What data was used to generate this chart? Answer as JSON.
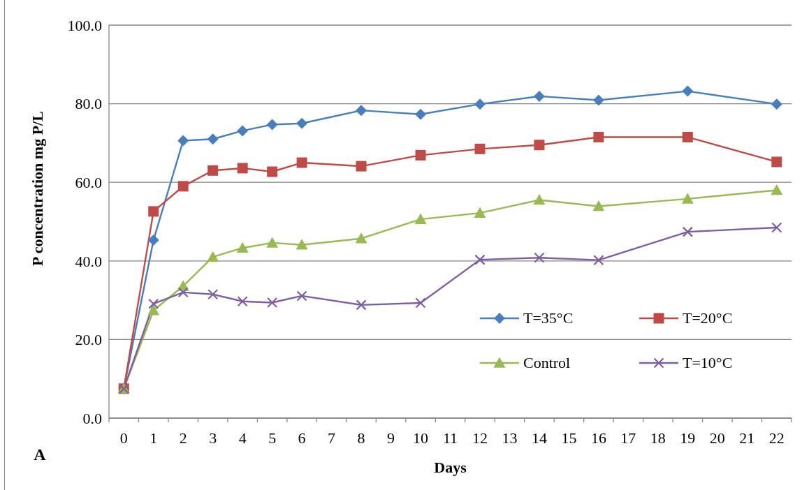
{
  "chart_data": {
    "type": "line",
    "xlabel": "Days",
    "ylabel": "P concentration mg P/L",
    "annotations": [
      "A"
    ],
    "x": [
      0,
      1,
      2,
      3,
      4,
      5,
      6,
      8,
      10,
      12,
      14,
      16,
      19,
      22
    ],
    "xlim": [
      -0.5,
      22.5
    ],
    "xticks": [
      0,
      1,
      2,
      3,
      4,
      5,
      6,
      7,
      8,
      9,
      10,
      11,
      12,
      13,
      14,
      15,
      16,
      17,
      18,
      19,
      20,
      21,
      22
    ],
    "ylim": [
      0,
      100
    ],
    "yticks": [
      {
        "value": 0,
        "label": "0.0"
      },
      {
        "value": 20,
        "label": "20.0"
      },
      {
        "value": 40,
        "label": "40.0"
      },
      {
        "value": 60,
        "label": "60.0"
      },
      {
        "value": 80,
        "label": "80.0"
      },
      {
        "value": 100,
        "label": "100.0"
      }
    ],
    "series": [
      {
        "name": "T=35°C",
        "color": "#4a7ebb",
        "marker": "diamond",
        "values": [
          7.5,
          45.3,
          70.6,
          71.0,
          73.1,
          74.7,
          75.0,
          78.3,
          77.3,
          79.9,
          81.9,
          80.9,
          83.2,
          79.9
        ]
      },
      {
        "name": "T=20°C",
        "color": "#be4b48",
        "marker": "square",
        "values": [
          7.5,
          52.6,
          59.0,
          63.0,
          63.6,
          62.7,
          65.0,
          64.1,
          66.9,
          68.5,
          69.5,
          71.5,
          71.5,
          65.2
        ]
      },
      {
        "name": "Control",
        "color": "#98b954",
        "marker": "triangle",
        "values": [
          7.5,
          27.4,
          33.6,
          41.0,
          43.3,
          44.6,
          44.1,
          45.7,
          50.6,
          52.2,
          55.5,
          53.9,
          55.8,
          58.0
        ]
      },
      {
        "name": "T=10°C",
        "color": "#7d5fa0",
        "marker": "cross",
        "values": [
          7.5,
          29.1,
          32.0,
          31.5,
          29.7,
          29.4,
          31.1,
          28.8,
          29.3,
          40.3,
          40.8,
          40.2,
          47.4,
          48.5
        ]
      }
    ],
    "grid": "y",
    "legend": "bottom right",
    "line_style": "solid"
  }
}
